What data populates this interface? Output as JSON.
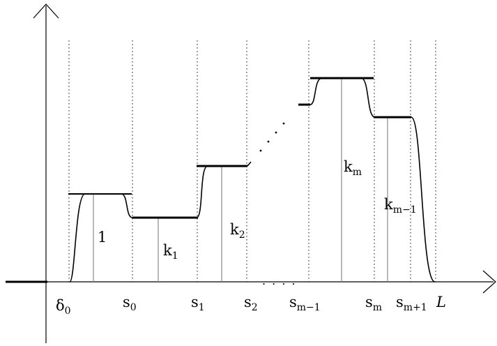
{
  "labels": {
    "delta0": {
      "base": "δ",
      "sub": "0"
    },
    "s0": {
      "base": "s",
      "sub": "0"
    },
    "s1": {
      "base": "s",
      "sub": "1"
    },
    "s2": {
      "base": "s",
      "sub": "2"
    },
    "sm_minus_1": {
      "base": "s",
      "sub": "m−1"
    },
    "sm": {
      "base": "s",
      "sub": "m"
    },
    "sm_plus_1": {
      "base": "s",
      "sub": "m+1"
    },
    "L": "L",
    "one": "1",
    "k1": {
      "base": "k",
      "sub": "1"
    },
    "k2": {
      "base": "k",
      "sub": "2"
    },
    "km": {
      "base": "k",
      "sub": "m"
    },
    "km_minus_1": {
      "base": "k",
      "sub": "m−1"
    },
    "ellipsis_axis": ". . . .",
    "ellipsis_diag": ". . . ."
  }
}
